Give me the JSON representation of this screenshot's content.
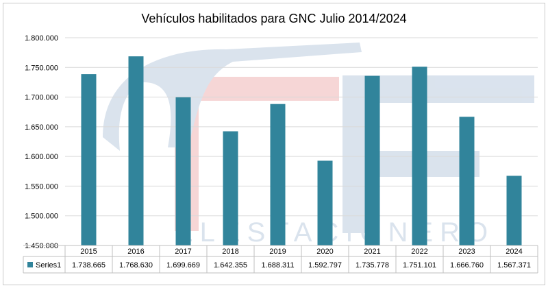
{
  "chart_data": {
    "type": "bar",
    "title": "Vehículos habilitados para GNC Julio 2014/2024",
    "categories": [
      "2015",
      "2016",
      "2017",
      "2018",
      "2019",
      "2020",
      "2021",
      "2022",
      "2023",
      "2024"
    ],
    "series": [
      {
        "name": "Series1",
        "values": [
          1738665,
          1768630,
          1699669,
          1642355,
          1688311,
          1592797,
          1735778,
          1751101,
          1666760,
          1567371
        ],
        "labels": [
          "1.738.665",
          "1.768.630",
          "1.699.669",
          "1.642.355",
          "1.688.311",
          "1.592.797",
          "1.735.778",
          "1.751.101",
          "1.666.760",
          "1.567.371"
        ],
        "color": "#31849b"
      }
    ],
    "ylim": [
      1450000,
      1800000
    ],
    "yticks": [
      1450000,
      1500000,
      1550000,
      1600000,
      1650000,
      1700000,
      1750000,
      1800000
    ],
    "ytick_labels": [
      "1.450.000",
      "1.500.000",
      "1.550.000",
      "1.600.000",
      "1.650.000",
      "1.700.000",
      "1.750.000",
      "1.800.000"
    ],
    "grid": true,
    "legend": "data-table"
  },
  "watermark": {
    "text": "ELESTACIONERO",
    "colors": [
      "#d6e0ec",
      "#f6d2d2"
    ]
  }
}
